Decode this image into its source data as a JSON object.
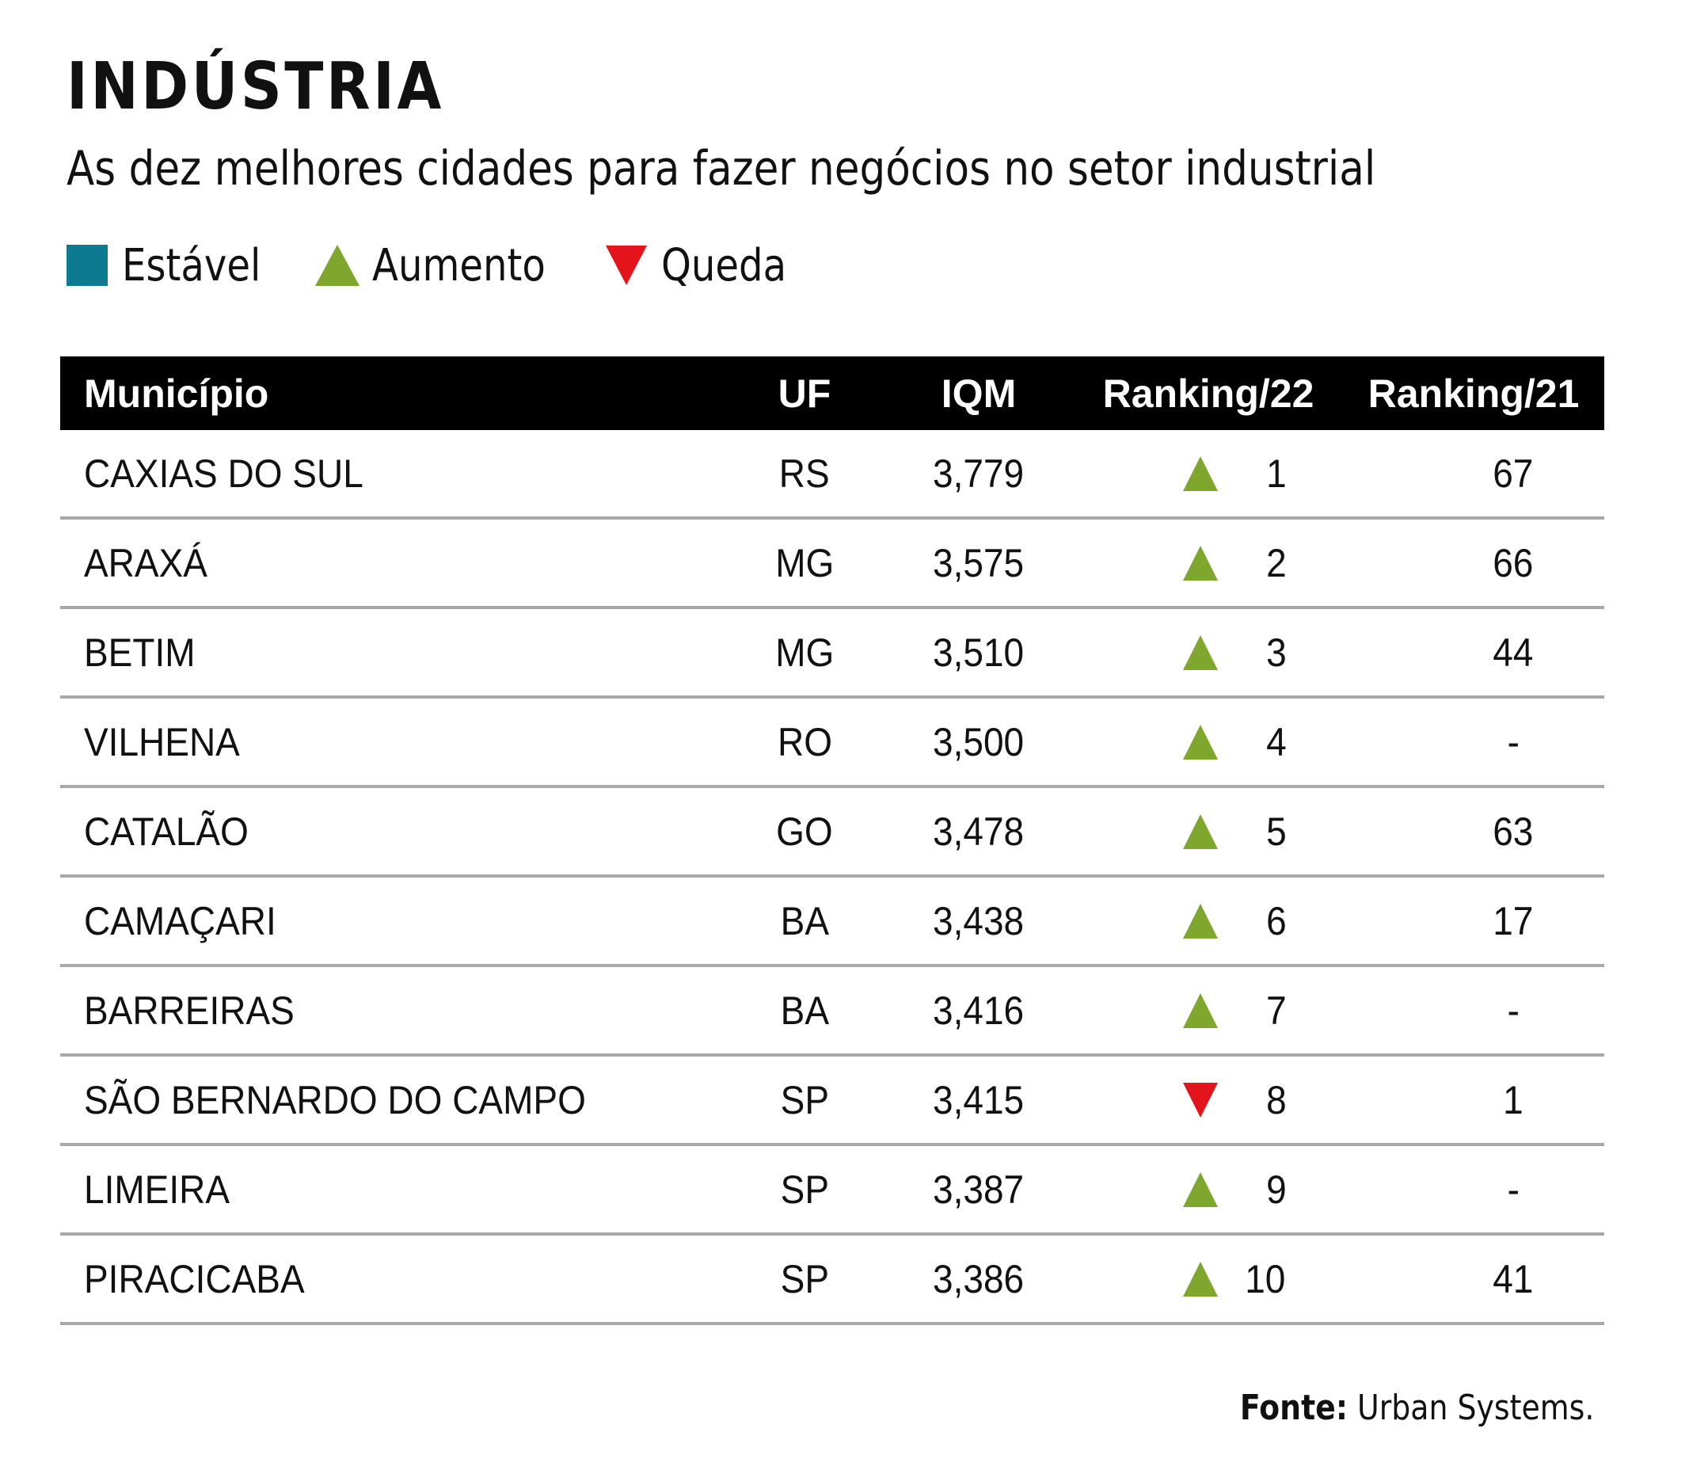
{
  "title": "INDÚSTRIA",
  "subtitle": "As dez melhores cidades para fazer negócios no setor industrial",
  "legend": [
    {
      "label": "Estável",
      "shape": "square",
      "color": "#0e7a92"
    },
    {
      "label": "Aumento",
      "shape": "triangle-up",
      "color": "#7fa72d"
    },
    {
      "label": "Queda",
      "shape": "triangle-down",
      "color": "#e3141c"
    }
  ],
  "source": {
    "label": "Fonte:",
    "text": "Urban Systems."
  },
  "chart_data": {
    "type": "table",
    "columns": [
      "Município",
      "UF",
      "IQM",
      "Ranking/22",
      "Ranking/21"
    ],
    "rows": [
      {
        "municipio": "CAXIAS DO SUL",
        "uf": "RS",
        "iqm": "3,779",
        "ranking22": "1",
        "trend": "up",
        "ranking21": "67"
      },
      {
        "municipio": "ARAXÁ",
        "uf": "MG",
        "iqm": "3,575",
        "ranking22": "2",
        "trend": "up",
        "ranking21": "66"
      },
      {
        "municipio": "BETIM",
        "uf": "MG",
        "iqm": "3,510",
        "ranking22": "3",
        "trend": "up",
        "ranking21": "44"
      },
      {
        "municipio": "VILHENA",
        "uf": "RO",
        "iqm": "3,500",
        "ranking22": "4",
        "trend": "up",
        "ranking21": "-"
      },
      {
        "municipio": "CATALÃO",
        "uf": "GO",
        "iqm": "3,478",
        "ranking22": "5",
        "trend": "up",
        "ranking21": "63"
      },
      {
        "municipio": "CAMAÇARI",
        "uf": "BA",
        "iqm": "3,438",
        "ranking22": "6",
        "trend": "up",
        "ranking21": "17"
      },
      {
        "municipio": "BARREIRAS",
        "uf": "BA",
        "iqm": "3,416",
        "ranking22": "7",
        "trend": "up",
        "ranking21": "-"
      },
      {
        "municipio": "SÃO BERNARDO DO CAMPO",
        "uf": "SP",
        "iqm": "3,415",
        "ranking22": "8",
        "trend": "down",
        "ranking21": "1"
      },
      {
        "municipio": "LIMEIRA",
        "uf": "SP",
        "iqm": "3,387",
        "ranking22": "9",
        "trend": "up",
        "ranking21": "-"
      },
      {
        "municipio": "PIRACICABA",
        "uf": "SP",
        "iqm": "3,386",
        "ranking22": "10",
        "trend": "up",
        "ranking21": "41"
      }
    ]
  }
}
